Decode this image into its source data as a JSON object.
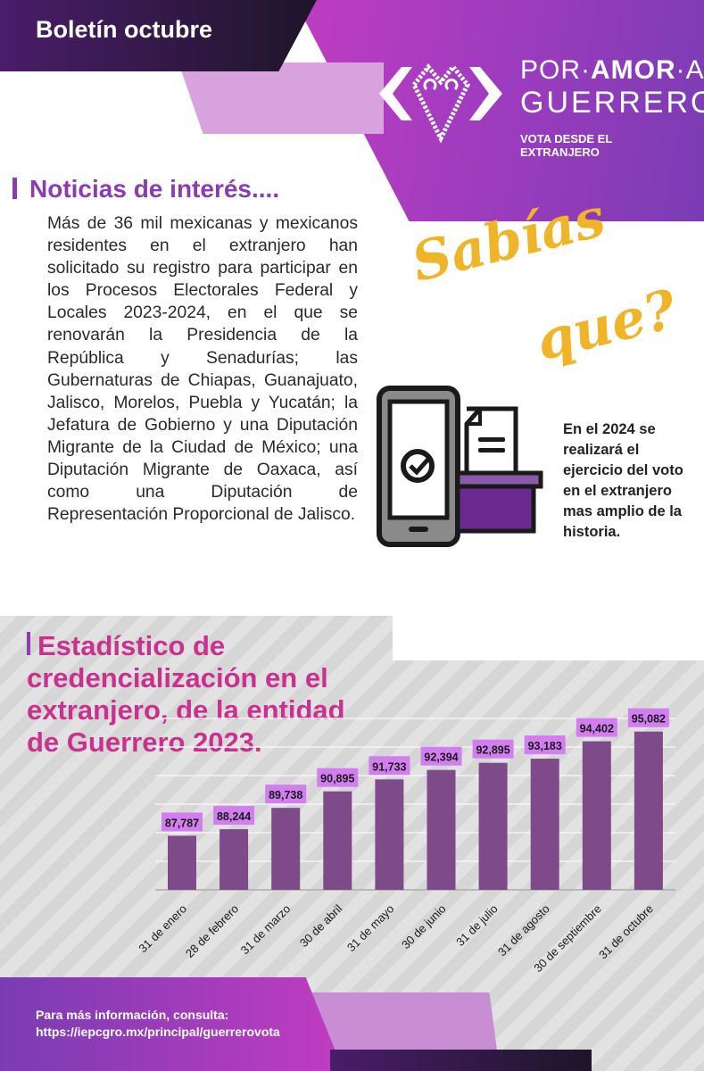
{
  "header": {
    "title": "Boletín octubre",
    "logo": {
      "line1a": "POR",
      "line1b": "AMOR",
      "line1c": "A",
      "line2": "GUERRERO",
      "line3": "VOTA DESDE EL EXTRANJERO"
    }
  },
  "news": {
    "heading": "Noticias de interés....",
    "body": "Más de 36 mil mexicanas y mexicanos residentes en el extranjero han solicitado su registro para participar en los Procesos Electorales Federal y Locales 2023-2024, en el que se renovarán la Presidencia de la República y Senadurías; las Gubernaturas de Chiapas, Guanajuato, Jalisco, Morelos, Puebla y Yucatán; la Jefatura de Gobierno y una Diputación Migrante de la Ciudad de México; una Diputación Migrante de Oaxaca, así como una Diputación de Representación Proporcional de Jalisco."
  },
  "fact": {
    "title1": "Sabías",
    "title2": "que?",
    "icon": "phone-ballot-box-icon",
    "text": "En el 2024 se realizará el ejercicio del voto en el extranjero mas amplio de la historia."
  },
  "footer": {
    "line1": "Para más información, consulta:",
    "line2": "https://iepcgro.mx/principal/guerrerovota"
  },
  "colors": {
    "bar": "#7f4a8a",
    "label_bg": "#d27df0",
    "title": "#c8328e",
    "accent": "#8a3cb0",
    "sabias": "#f0b428"
  },
  "chart_data": {
    "type": "bar",
    "title": "Estadístico de credencialización en el extranjero, de la entidad de Guerrero 2023.",
    "categories": [
      "31 de enero",
      "28 de febrero",
      "31 de marzo",
      "30 de abril",
      "31 de mayo",
      "30 de junio",
      "31 de julio",
      "31 de agosto",
      "30 de septiembre",
      "31 de octubre"
    ],
    "values": [
      87787,
      88244,
      89738,
      90895,
      91733,
      92394,
      92895,
      93183,
      94402,
      95082
    ],
    "value_labels": [
      "87,787",
      "88,244",
      "89,738",
      "90,895",
      "91,733",
      "92,394",
      "92,895",
      "93,183",
      "94,402",
      "95,082"
    ],
    "ylim": [
      84000,
      96000
    ],
    "grid": true,
    "xlabel": "",
    "ylabel": ""
  }
}
